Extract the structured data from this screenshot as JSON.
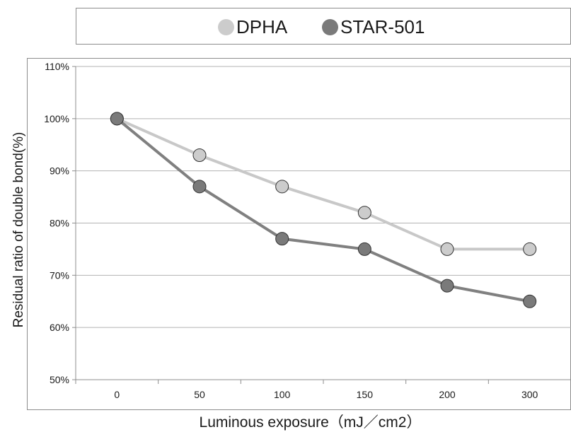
{
  "chart_data": {
    "type": "line",
    "categories": [
      "0",
      "50",
      "100",
      "150",
      "200",
      "300"
    ],
    "series": [
      {
        "name": "DPHA",
        "values": [
          100,
          93,
          87,
          82,
          75,
          75
        ],
        "color": "#c8c8c8",
        "marker_color": "#cccccc"
      },
      {
        "name": "STAR-501",
        "values": [
          100,
          87,
          77,
          75,
          68,
          65
        ],
        "color": "#808080",
        "marker_color": "#7a7a7a"
      }
    ],
    "xlabel": "Luminous exposure（mJ／cm2）",
    "ylabel": "Residual ratio of double bond(%)",
    "ylim": [
      50,
      110
    ],
    "yticks": [
      50,
      60,
      70,
      80,
      90,
      100,
      110
    ],
    "ytick_labels": [
      "50%",
      "60%",
      "70%",
      "80%",
      "90%",
      "100%",
      "110%"
    ],
    "grid": "horizontal",
    "legend_placement": "top"
  }
}
